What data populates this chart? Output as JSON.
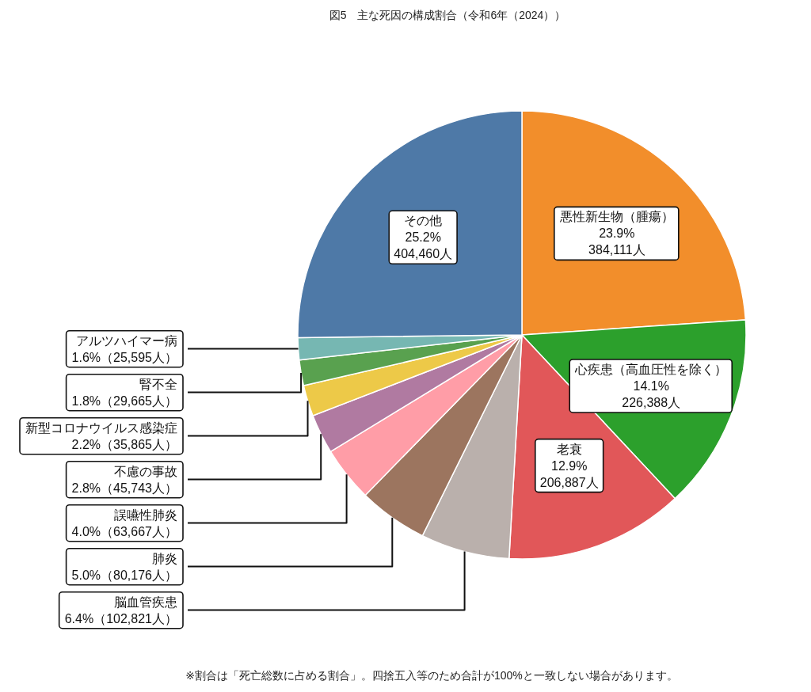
{
  "chart_data": {
    "type": "pie",
    "title": "図5　主な死因の構成割合（令和6年（2024））",
    "categories": [
      "悪性新生物（腫瘍）",
      "心疾患（高血圧性を除く）",
      "老衰",
      "脳血管疾患",
      "肺炎",
      "誤嚥性肺炎",
      "不慮の事故",
      "新型コロナウイルス感染症",
      "腎不全",
      "アルツハイマー病",
      "その他"
    ],
    "values": [
      384111,
      226388,
      206887,
      102821,
      80176,
      63667,
      45743,
      35865,
      29665,
      25595,
      404460
    ],
    "value_labels": [
      "23.9%\n384,111人",
      "14.1%\n226,388人",
      "12.9%\n206,887人",
      "6.4%（102,821人）",
      "5.0%（80,176人）",
      "4.0%（63,667人）",
      "2.8%（45,743人）",
      "2.2%（35,865人）",
      "1.8%（29,665人）",
      "1.6%（25,595人）",
      "25.2%\n404,460人"
    ],
    "colors": [
      "#f28e2b",
      "#2ca02c",
      "#e15759",
      "#bab0ac",
      "#9c755f",
      "#ff9da7",
      "#b07aa1",
      "#edc948",
      "#59a14f",
      "#76b7b2",
      "#4e79a7"
    ],
    "annotations": [
      "※割合は「死亡総数に占める割合」。四捨五入等のため合計が100%と一致しない場合があります。"
    ]
  }
}
